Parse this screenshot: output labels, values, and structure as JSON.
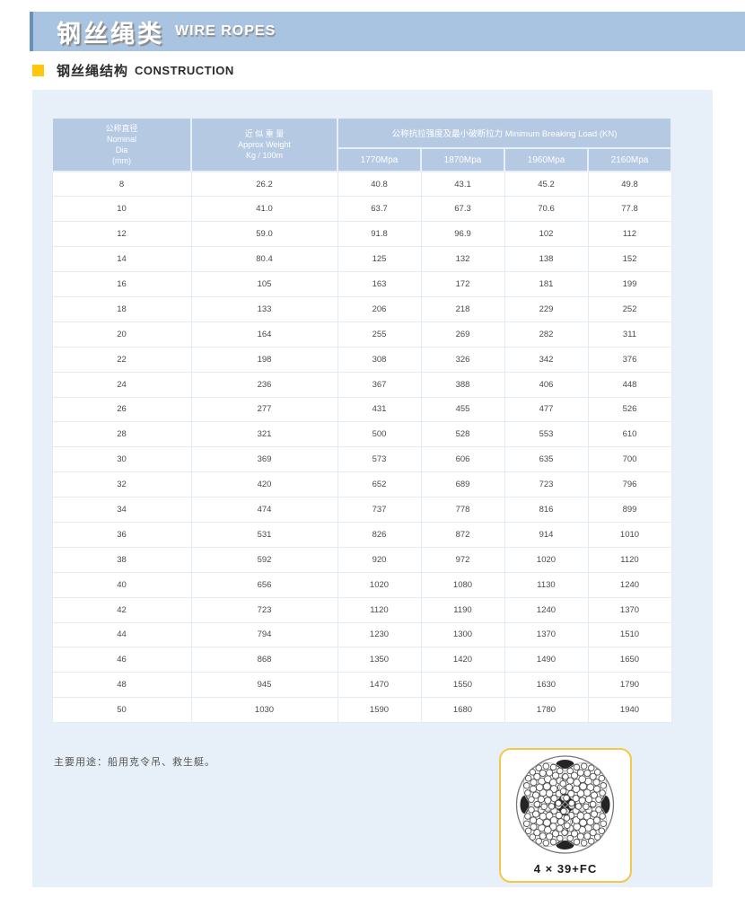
{
  "header": {
    "title_cn": "钢丝绳类",
    "title_en": "WIRE ROPES"
  },
  "section": {
    "title_cn": "钢丝绳结构",
    "title_en": "CONSTRUCTION"
  },
  "table": {
    "col_dia_header": "公称直径\nNominal\nDia\n(mm)",
    "col_weight_header": "近 似 重 量\nApprox Weight\nKg / 100m",
    "group_header": "公称抗拉强度及最小破断拉力 Minimum Breaking Load (KN)",
    "grade_headers": [
      "1770Mpa",
      "1870Mpa",
      "1960Mpa",
      "2160Mpa"
    ],
    "rows": [
      [
        "8",
        "26.2",
        "40.8",
        "43.1",
        "45.2",
        "49.8"
      ],
      [
        "10",
        "41.0",
        "63.7",
        "67.3",
        "70.6",
        "77.8"
      ],
      [
        "12",
        "59.0",
        "91.8",
        "96.9",
        "102",
        "112"
      ],
      [
        "14",
        "80.4",
        "125",
        "132",
        "138",
        "152"
      ],
      [
        "16",
        "105",
        "163",
        "172",
        "181",
        "199"
      ],
      [
        "18",
        "133",
        "206",
        "218",
        "229",
        "252"
      ],
      [
        "20",
        "164",
        "255",
        "269",
        "282",
        "311"
      ],
      [
        "22",
        "198",
        "308",
        "326",
        "342",
        "376"
      ],
      [
        "24",
        "236",
        "367",
        "388",
        "406",
        "448"
      ],
      [
        "26",
        "277",
        "431",
        "455",
        "477",
        "526"
      ],
      [
        "28",
        "321",
        "500",
        "528",
        "553",
        "610"
      ],
      [
        "30",
        "369",
        "573",
        "606",
        "635",
        "700"
      ],
      [
        "32",
        "420",
        "652",
        "689",
        "723",
        "796"
      ],
      [
        "34",
        "474",
        "737",
        "778",
        "816",
        "899"
      ],
      [
        "36",
        "531",
        "826",
        "872",
        "914",
        "1010"
      ],
      [
        "38",
        "592",
        "920",
        "972",
        "1020",
        "1120"
      ],
      [
        "40",
        "656",
        "1020",
        "1080",
        "1130",
        "1240"
      ],
      [
        "42",
        "723",
        "1120",
        "1190",
        "1240",
        "1370"
      ],
      [
        "44",
        "794",
        "1230",
        "1300",
        "1370",
        "1510"
      ],
      [
        "46",
        "868",
        "1350",
        "1420",
        "1490",
        "1650"
      ],
      [
        "48",
        "945",
        "1470",
        "1550",
        "1630",
        "1790"
      ],
      [
        "50",
        "1030",
        "1590",
        "1680",
        "1780",
        "1940"
      ]
    ]
  },
  "footer": {
    "note": "主要用途：船用克令吊、救生艇。",
    "rope_label": "4 × 39+FC"
  },
  "colors": {
    "band_blue": "#a9c4e1",
    "band_accent_blue": "#6590bf",
    "accent_yellow": "#ffc60b",
    "header_cell_blue": "#b5c9e3",
    "panel_blue": "#e7eff8",
    "card_border_yellow": "#f2c84b"
  }
}
